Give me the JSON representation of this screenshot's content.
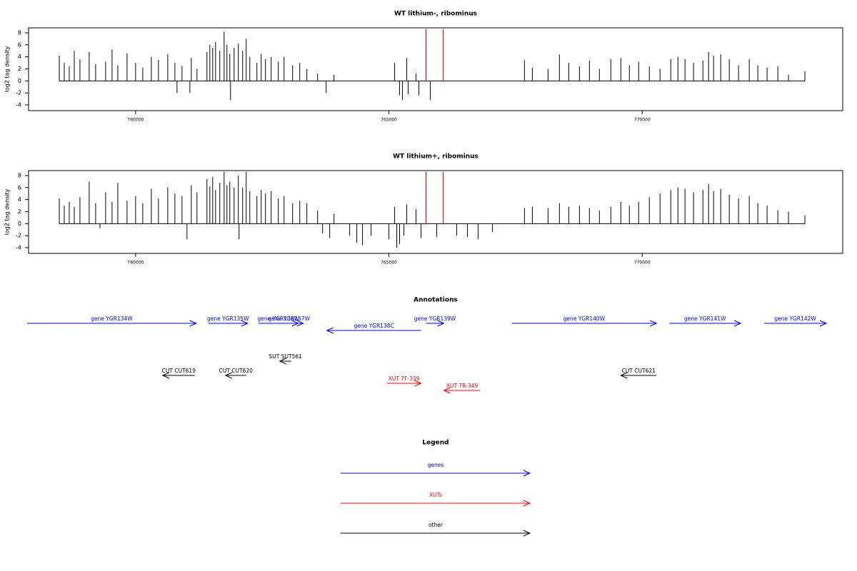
{
  "chart_data": [
    {
      "type": "bar",
      "title": "WT lithium-, ribominus",
      "y_label": "log2 tag density",
      "color": "#000000",
      "xlim": [
        757887,
        773958
      ],
      "xticks": [
        760000,
        765000,
        770000
      ],
      "ylim": [
        -4.95,
        8.83
      ],
      "yticks": [
        -4,
        -2,
        0,
        2,
        4,
        6,
        8
      ],
      "x": [
        758493,
        758591,
        758690,
        758789,
        758901,
        759084,
        759211,
        759408,
        759535,
        759648,
        759831,
        760000,
        760141,
        760310,
        760451,
        760634,
        760775,
        760916,
        761099,
        761211,
        761408,
        761465,
        761521,
        761578,
        761662,
        761747,
        761803,
        761859,
        761944,
        762028,
        762113,
        762183,
        762254,
        762394,
        762479,
        762563,
        762676,
        762817,
        762930,
        763099,
        763240,
        763380,
        763592,
        763916,
        765113,
        765352,
        765535,
        767676,
        767831,
        768141,
        768366,
        768550,
        768761,
        768958,
        769155,
        769381,
        769578,
        769747,
        769930,
        770141,
        770352,
        770564,
        770705,
        770845,
        771014,
        771198,
        771310,
        771409,
        771550,
        771719,
        771902,
        772113,
        772282,
        772465,
        772677,
        772888,
        773212,
        760817,
        761071,
        761873,
        763761,
        765211,
        765268,
        765380,
        765592,
        765817
      ],
      "values": [
        4.2,
        3.0,
        2.4,
        5.0,
        3.6,
        4.8,
        2.8,
        3.2,
        5.2,
        2.6,
        4.6,
        3.0,
        2.2,
        4.0,
        3.5,
        4.4,
        3.0,
        2.5,
        3.8,
        2.0,
        4.8,
        6.0,
        5.5,
        6.5,
        5.0,
        8.2,
        6.0,
        4.5,
        5.5,
        6.2,
        5.0,
        7.0,
        4.0,
        3.0,
        4.5,
        3.6,
        4.0,
        3.2,
        4.0,
        2.6,
        3.0,
        2.0,
        1.2,
        1.0,
        3.0,
        3.8,
        1.2,
        3.4,
        2.2,
        2.0,
        4.4,
        3.0,
        2.4,
        3.4,
        2.0,
        3.6,
        3.8,
        2.6,
        3.2,
        2.4,
        2.0,
        3.6,
        4.0,
        3.6,
        3.0,
        3.4,
        4.8,
        4.2,
        4.4,
        3.6,
        2.6,
        3.6,
        2.6,
        2.2,
        2.4,
        1.0,
        1.6,
        -2.0,
        -2.0,
        -3.2,
        -2.0,
        -2.4,
        -3.2,
        -2.2,
        -2.4,
        -3.2
      ],
      "highlights": {
        "color": "#e00000",
        "x": [
          765732,
          766070
        ],
        "values": [
          8.6,
          8.6
        ]
      }
    },
    {
      "type": "bar",
      "title": "WT lithium+, ribominus",
      "y_label": "log2 tag density",
      "color": "#000000",
      "xlim": [
        757887,
        773958
      ],
      "xticks": [
        760000,
        765000,
        770000
      ],
      "ylim": [
        -4.95,
        8.83
      ],
      "yticks": [
        -4,
        -2,
        0,
        2,
        4,
        6,
        8
      ],
      "x": [
        758493,
        758591,
        758690,
        758789,
        758901,
        759084,
        759211,
        759408,
        759535,
        759648,
        759831,
        760000,
        760141,
        760310,
        760451,
        760634,
        760775,
        760916,
        761099,
        761211,
        761408,
        761465,
        761521,
        761578,
        761662,
        761747,
        761803,
        761859,
        761944,
        762028,
        762113,
        762183,
        762254,
        762394,
        762479,
        762563,
        762676,
        762817,
        762930,
        763099,
        763240,
        763380,
        763592,
        763916,
        765113,
        765352,
        765535,
        767676,
        767831,
        768141,
        768366,
        768550,
        768761,
        768958,
        769155,
        769381,
        769578,
        769747,
        769930,
        770141,
        770352,
        770564,
        770705,
        770845,
        771014,
        771198,
        771310,
        771409,
        771550,
        771719,
        771902,
        772113,
        772282,
        772465,
        772677,
        772888,
        773212,
        759296,
        761014,
        762042,
        763690,
        763831,
        764226,
        764366,
        764479,
        764648,
        765000,
        765155,
        765211,
        765296,
        765634,
        765944,
        766338,
        766550,
        766761,
        767043
      ],
      "values": [
        4.2,
        3.0,
        3.6,
        2.8,
        4.4,
        7.0,
        3.4,
        5.2,
        3.6,
        6.8,
        3.8,
        4.6,
        3.4,
        5.8,
        4.2,
        6.0,
        5.0,
        4.6,
        6.4,
        5.2,
        7.4,
        6.2,
        7.8,
        5.6,
        6.8,
        8.6,
        6.4,
        7.0,
        6.0,
        8.0,
        6.0,
        8.6,
        5.4,
        4.6,
        5.6,
        5.0,
        5.4,
        4.2,
        4.6,
        3.4,
        3.8,
        3.4,
        2.2,
        1.6,
        2.8,
        3.2,
        2.4,
        2.6,
        2.8,
        2.6,
        3.4,
        2.8,
        3.0,
        2.6,
        2.2,
        2.8,
        3.6,
        3.0,
        3.6,
        4.4,
        5.0,
        5.6,
        6.0,
        5.8,
        5.2,
        5.6,
        6.6,
        5.4,
        5.8,
        4.8,
        4.2,
        4.6,
        3.4,
        3.0,
        2.2,
        2.0,
        1.4,
        -0.8,
        -2.6,
        -2.6,
        -1.6,
        -2.4,
        -2.0,
        -3.2,
        -3.6,
        -2.0,
        -2.6,
        -4.0,
        -3.4,
        -2.0,
        -2.4,
        -2.2,
        -2.0,
        -2.2,
        -2.6,
        -1.4
      ],
      "highlights": {
        "color": "#e00000",
        "x": [
          765732,
          766070
        ],
        "values": [
          8.6,
          8.6
        ]
      }
    }
  ],
  "annotations": {
    "title": "Annotations",
    "xlim": [
      757887,
      773958
    ],
    "items": [
      {
        "label": "gene YGR134W",
        "color": "#0000ff",
        "start": 757859,
        "end": 761197
      },
      {
        "label": "gene YGR135W",
        "color": "#0000ff",
        "start": 761437,
        "end": 762211
      },
      {
        "label": "gene YGR136W",
        "color": "#0000ff",
        "start": 762423,
        "end": 763211
      },
      {
        "label": "gene YGR137W",
        "color": "#0000ff",
        "start": 762747,
        "end": 763310
      },
      {
        "label": "gene YGR138C",
        "color": "#0000ff",
        "start": 765634,
        "end": 763775
      },
      {
        "label": "gene YGR139W",
        "color": "#0000ff",
        "start": 765732,
        "end": 766085
      },
      {
        "label": "gene YGR140W",
        "color": "#0000ff",
        "start": 767423,
        "end": 770282
      },
      {
        "label": "gene YGR141W",
        "color": "#0000ff",
        "start": 770536,
        "end": 771944
      },
      {
        "label": "gene YGR142W",
        "color": "#0000ff",
        "start": 772409,
        "end": 773634
      },
      {
        "label": "SUT SUT561",
        "color": "#000000",
        "start": 763071,
        "end": 762845
      },
      {
        "label": "CUT CUT619",
        "color": "#000000",
        "start": 761169,
        "end": 760535
      },
      {
        "label": "CUT CUT620",
        "color": "#000000",
        "start": 762183,
        "end": 761775
      },
      {
        "label": "CUT CUT621",
        "color": "#000000",
        "start": 770282,
        "end": 769578
      },
      {
        "label": "XUT 7F-339",
        "color": "#ff0000",
        "start": 764958,
        "end": 765634
      },
      {
        "label": "XUT 7R-349",
        "color": "#ff0000",
        "start": 766803,
        "end": 766085
      }
    ]
  },
  "legend": {
    "title": "Legend",
    "items": [
      {
        "label": "genes",
        "color": "#0000ff"
      },
      {
        "label": "XUTs",
        "color": "#ff0000"
      },
      {
        "label": "other",
        "color": "#000000"
      }
    ]
  }
}
